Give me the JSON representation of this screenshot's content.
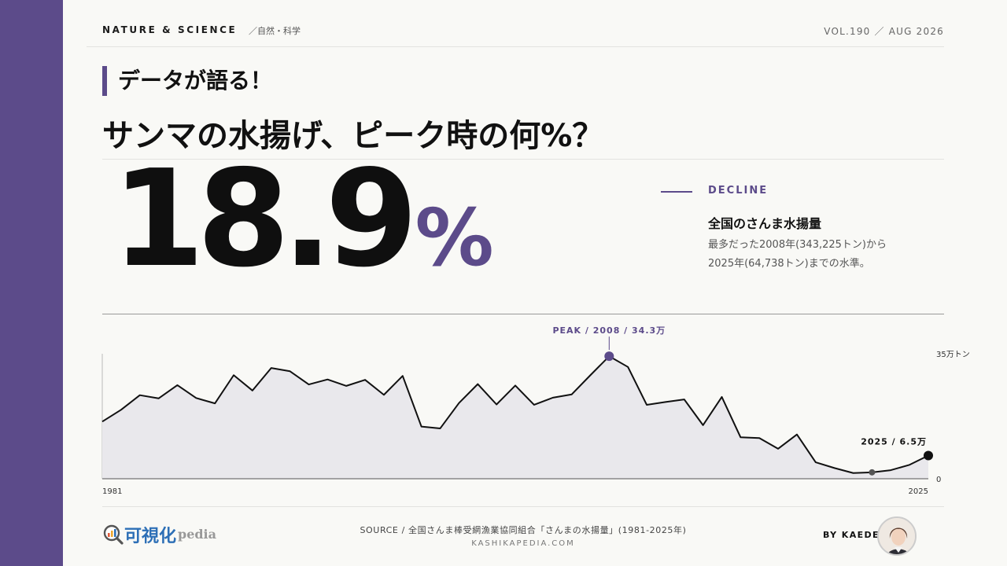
{
  "header": {
    "brand": "NATURE & SCIENCE",
    "category": "／自然・科学",
    "volume": "VOL.190 ／ AUG 2026"
  },
  "kicker": "データが語る！",
  "headline": "サンマの水揚げ、ピーク時の何%？",
  "big_number": {
    "value": "18.9",
    "unit": "%"
  },
  "side": {
    "tag": "DECLINE",
    "title": "全国のさんま水揚量",
    "line1": "最多だった2008年(343,225トン)から",
    "line2": "2025年(64,738トン)までの水準。"
  },
  "chart_data": {
    "type": "area",
    "x": [
      1981,
      1982,
      1983,
      1984,
      1985,
      1986,
      1987,
      1988,
      1989,
      1990,
      1991,
      1992,
      1993,
      1994,
      1995,
      1996,
      1997,
      1998,
      1999,
      2000,
      2001,
      2002,
      2003,
      2004,
      2005,
      2006,
      2007,
      2008,
      2009,
      2010,
      2011,
      2012,
      2013,
      2014,
      2015,
      2016,
      2017,
      2018,
      2019,
      2020,
      2021,
      2022,
      2023,
      2024,
      2025
    ],
    "y": [
      16.0,
      19.3,
      23.4,
      22.5,
      26.2,
      22.6,
      21.1,
      29.0,
      24.7,
      31.0,
      30.1,
      26.4,
      27.8,
      26.0,
      27.7,
      23.5,
      28.8,
      14.6,
      14.1,
      21.2,
      26.5,
      20.8,
      26.1,
      20.7,
      22.7,
      23.6,
      29.0,
      34.3,
      31.3,
      20.7,
      21.5,
      22.2,
      15.0,
      22.9,
      11.6,
      11.4,
      8.4,
      12.4,
      4.6,
      3.0,
      1.6,
      1.8,
      2.4,
      3.9,
      6.5
    ],
    "y_unit": "万トン",
    "ylim": [
      0,
      35
    ],
    "y_tick_labels": [
      "35万トン",
      "0"
    ],
    "x_tick_labels": [
      "1981",
      "2025"
    ],
    "annotations": [
      {
        "label": "PEAK / 2008 / 34.3万",
        "x": 2008,
        "y": 34.3,
        "color": "#5c4b8a"
      },
      {
        "label": "2025 / 6.5万",
        "x": 2025,
        "y": 6.5,
        "color": "#111111"
      }
    ],
    "highlight_points": [
      {
        "x": 2008,
        "y": 34.3,
        "color": "#5c4b8a"
      },
      {
        "x": 2022,
        "y": 1.8,
        "color": "#555555"
      },
      {
        "x": 2025,
        "y": 6.5,
        "color": "#111111"
      }
    ],
    "line_color": "#111111",
    "fill_color": "#e9e8ec",
    "grid": false
  },
  "footer": {
    "logo_main": "可視化",
    "logo_sub": "pedia",
    "source": "SOURCE / 全国さんま棒受網漁業協同組合「さんまの水揚量」(1981-2025年)",
    "site": "KASHIKAPEDIA.COM",
    "byline": "BY KAEDE"
  }
}
